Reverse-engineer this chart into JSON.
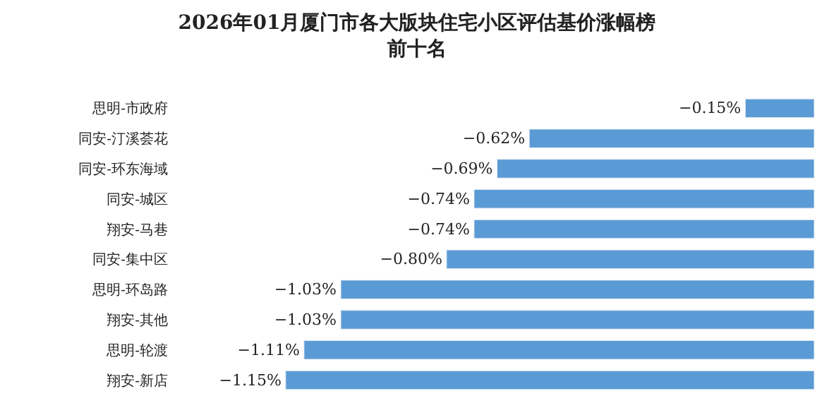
{
  "chart_data": {
    "type": "bar",
    "orientation": "horizontal",
    "title": "2026年01月厦门市各大版块住宅小区评估基价涨幅榜",
    "subtitle": "前十名",
    "categories": [
      "思明-市政府",
      "同安-汀溪荟花",
      "同安-环东海域",
      "同安-城区",
      "翔安-马巷",
      "同安-集中区",
      "思明-环岛路",
      "翔安-其他",
      "思明-轮渡",
      "翔安-新店"
    ],
    "values": [
      -0.15,
      -0.62,
      -0.69,
      -0.74,
      -0.74,
      -0.8,
      -1.03,
      -1.03,
      -1.11,
      -1.15
    ],
    "value_labels": [
      "−0.15%",
      "−0.62%",
      "−0.69%",
      "−0.74%",
      "−0.74%",
      "−0.80%",
      "−1.03%",
      "−1.03%",
      "−1.11%",
      "−1.15%"
    ],
    "color": "#5b9bd5"
  }
}
